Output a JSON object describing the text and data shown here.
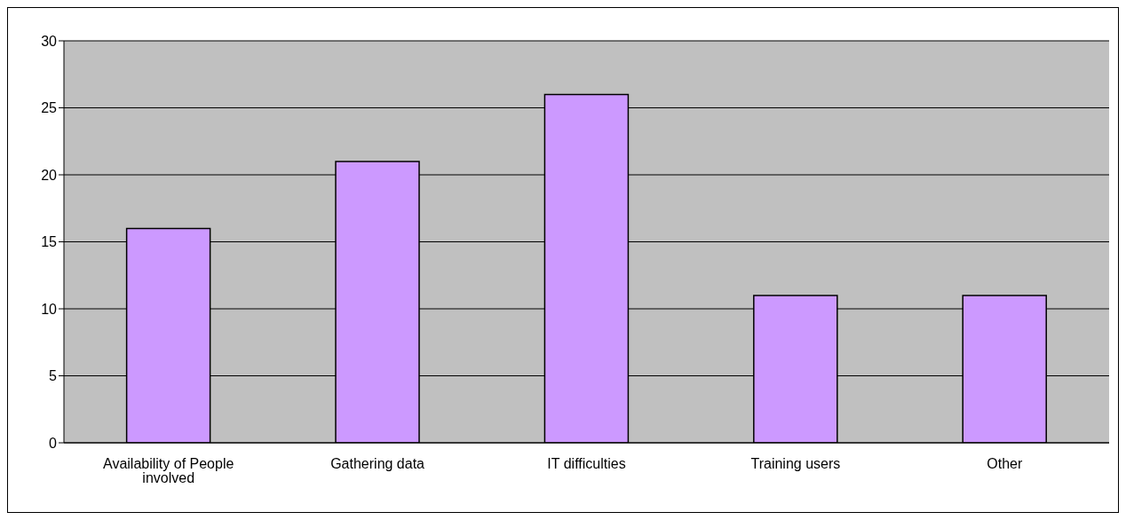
{
  "chart_data": {
    "type": "bar",
    "categories": [
      "Availability of People involved",
      "Gathering data",
      "IT difficulties",
      "Training users",
      "Other"
    ],
    "values": [
      16,
      21,
      26,
      11,
      11
    ],
    "color": "#cc99ff",
    "ylim": [
      0,
      30
    ],
    "yticks": [
      0,
      5,
      10,
      15,
      20,
      25,
      30
    ],
    "grid": "y",
    "legend": false
  }
}
